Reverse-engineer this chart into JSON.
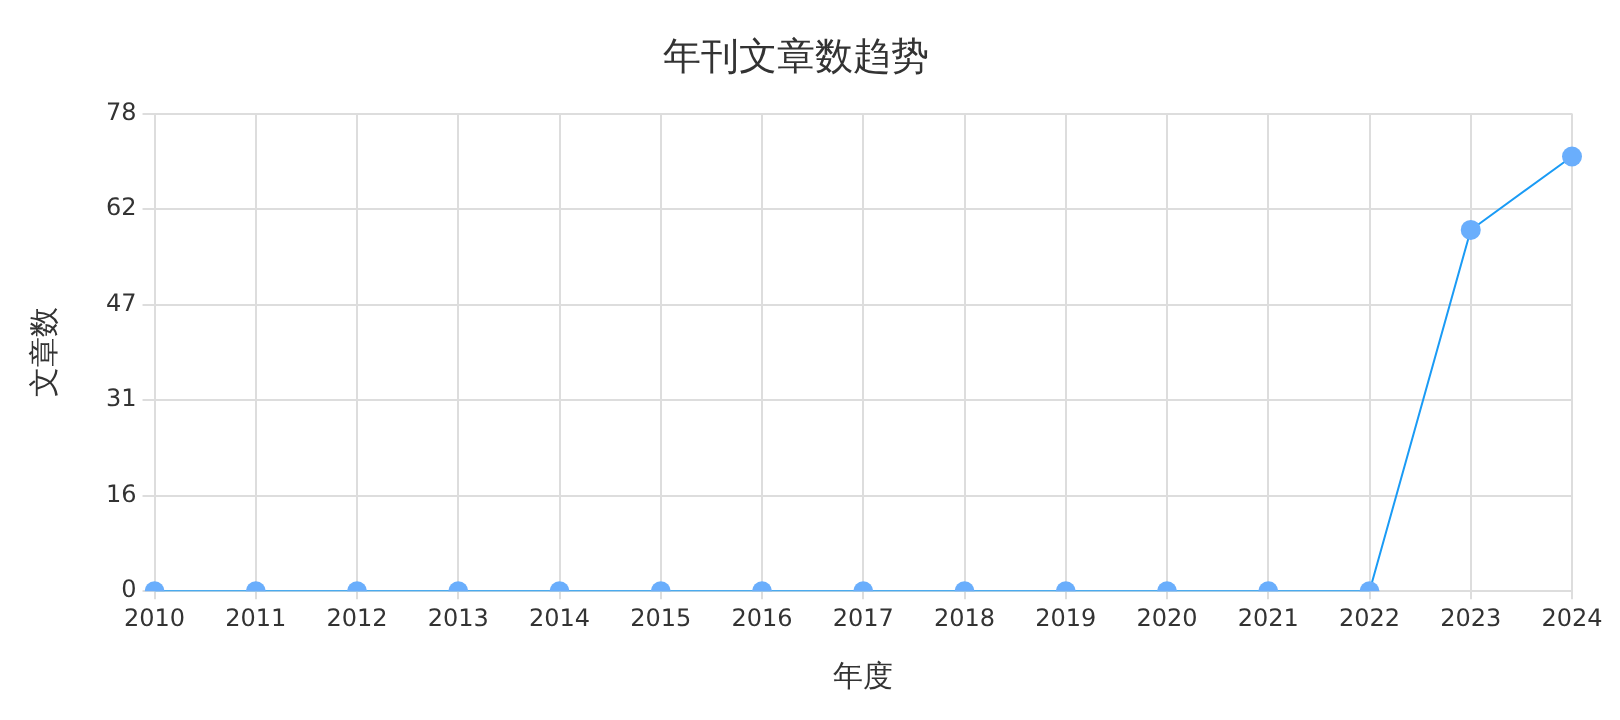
{
  "chart_data": {
    "type": "line",
    "title": "年刊文章数趋势",
    "xlabel": "年度",
    "ylabel": "文章数",
    "categories": [
      "2010",
      "2011",
      "2012",
      "2013",
      "2014",
      "2015",
      "2016",
      "2017",
      "2018",
      "2019",
      "2020",
      "2021",
      "2022",
      "2023",
      "2024"
    ],
    "series": [
      {
        "color": "#1a9bf5",
        "values": [
          0,
          0,
          0,
          0,
          0,
          0,
          0,
          0,
          0,
          0,
          0,
          0,
          0,
          59,
          71
        ]
      }
    ],
    "ylim": [
      0,
      78
    ],
    "yticks": [
      0,
      {
        "value": 15.6,
        "label": "16"
      },
      {
        "value": 31.2,
        "label": "31"
      },
      {
        "value": 46.8,
        "label": "47"
      },
      {
        "value": 62.4,
        "label": "62"
      },
      78
    ],
    "grid": true,
    "legend": false,
    "marker": "circle",
    "line_style": "solid"
  }
}
